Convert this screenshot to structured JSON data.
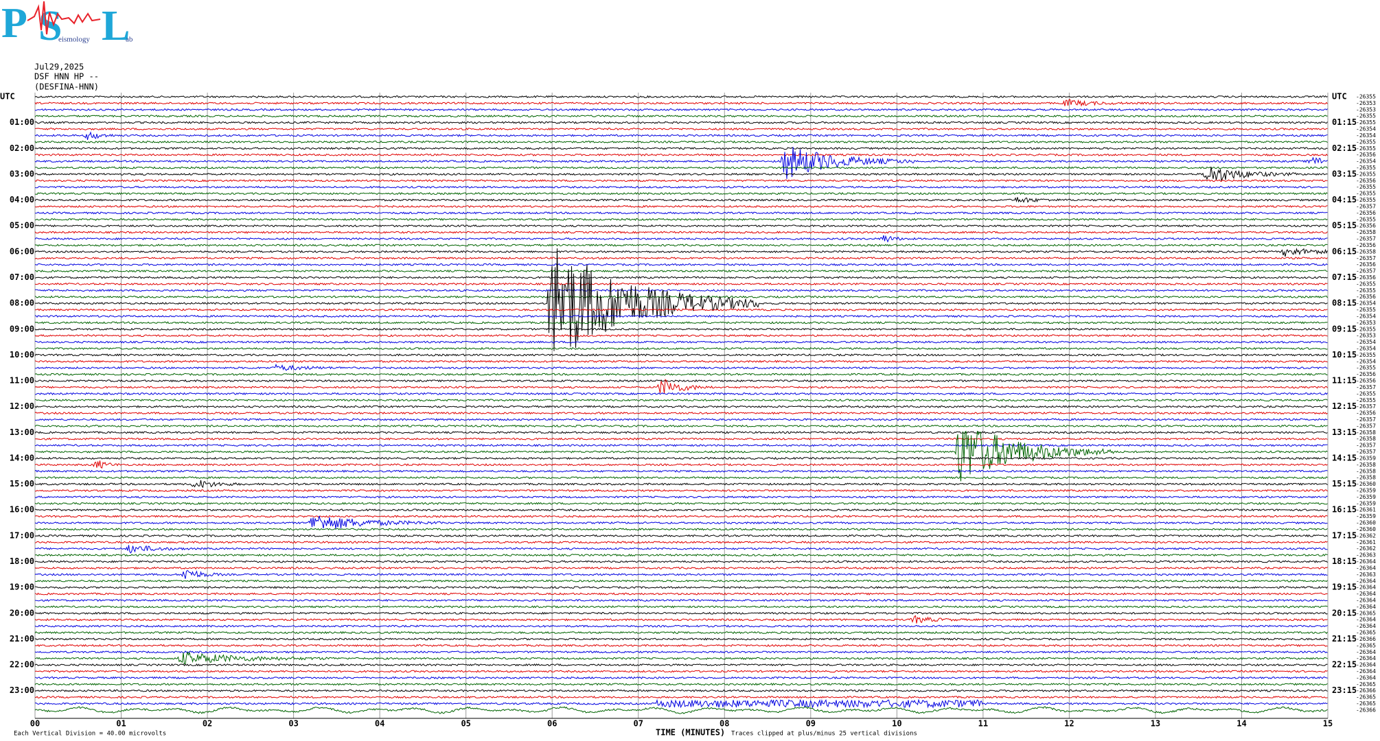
{
  "logo": {
    "letters": [
      "P",
      "S",
      "L"
    ],
    "words": [
      "eismology",
      "ab"
    ]
  },
  "header": {
    "date": "Jul29,2025",
    "station": "DSF HNN HP --",
    "site": "(DESFINA-HNN)"
  },
  "left_labels": [
    "UTC",
    "01:00",
    "02:00",
    "03:00",
    "04:00",
    "05:00",
    "06:00",
    "07:00",
    "08:00",
    "09:00",
    "10:00",
    "11:00",
    "12:00",
    "13:00",
    "14:00",
    "15:00",
    "16:00",
    "17:00",
    "18:00",
    "19:00",
    "20:00",
    "21:00",
    "22:00",
    "23:00"
  ],
  "right_labels": [
    "UTC",
    "01:15",
    "02:15",
    "03:15",
    "04:15",
    "05:15",
    "06:15",
    "07:15",
    "08:15",
    "09:15",
    "10:15",
    "11:15",
    "12:15",
    "13:15",
    "14:15",
    "15:15",
    "16:15",
    "17:15",
    "18:15",
    "19:15",
    "20:15",
    "21:15",
    "22:15",
    "23:15"
  ],
  "trace_counts": [
    -26355,
    -26353,
    -26353,
    -26355,
    -26355,
    -26354,
    -26354,
    -26355,
    -26355,
    -26356,
    -26354,
    -26355,
    -26355,
    -26356,
    -26355,
    -26355,
    -26355,
    -26357,
    -26356,
    -26355,
    -26356,
    -26358,
    -26357,
    -26356,
    -26358,
    -26357,
    -26356,
    -26357,
    -26356,
    -26355,
    -26355,
    -26356,
    -26354,
    -26355,
    -26354,
    -26353,
    -26355,
    -26353,
    -26354,
    -26354,
    -26355,
    -26354,
    -26355,
    -26356,
    -26356,
    -26357,
    -26355,
    -26355,
    -26357,
    -26356,
    -26357,
    -26357,
    -26358,
    -26358,
    -26357,
    -26357,
    -26359,
    -26358,
    -26358,
    -26358,
    -26360,
    -26359,
    -26359,
    -26359,
    -26361,
    -26359,
    -26360,
    -26360,
    -26362,
    -26361,
    -26362,
    -26363,
    -26364,
    -26364,
    -26363,
    -26364,
    -26364,
    -26364,
    -26364,
    -26364,
    -26365,
    -26364,
    -26364,
    -26365,
    -26366,
    -26365,
    -26364,
    -26364,
    -26364,
    -26364,
    -26364,
    -26365,
    -26366,
    -26365,
    -26365,
    -26366
  ],
  "x_ticks": [
    "00",
    "01",
    "02",
    "03",
    "04",
    "05",
    "06",
    "07",
    "08",
    "09",
    "10",
    "11",
    "12",
    "13",
    "14",
    "15"
  ],
  "footer": {
    "scale_note": "Each Vertical Division =   40.00 microvolts",
    "x_label": "TIME (MINUTES)",
    "clip_note": "Traces clipped at plus/minus 25 vertical divisions"
  }
}
